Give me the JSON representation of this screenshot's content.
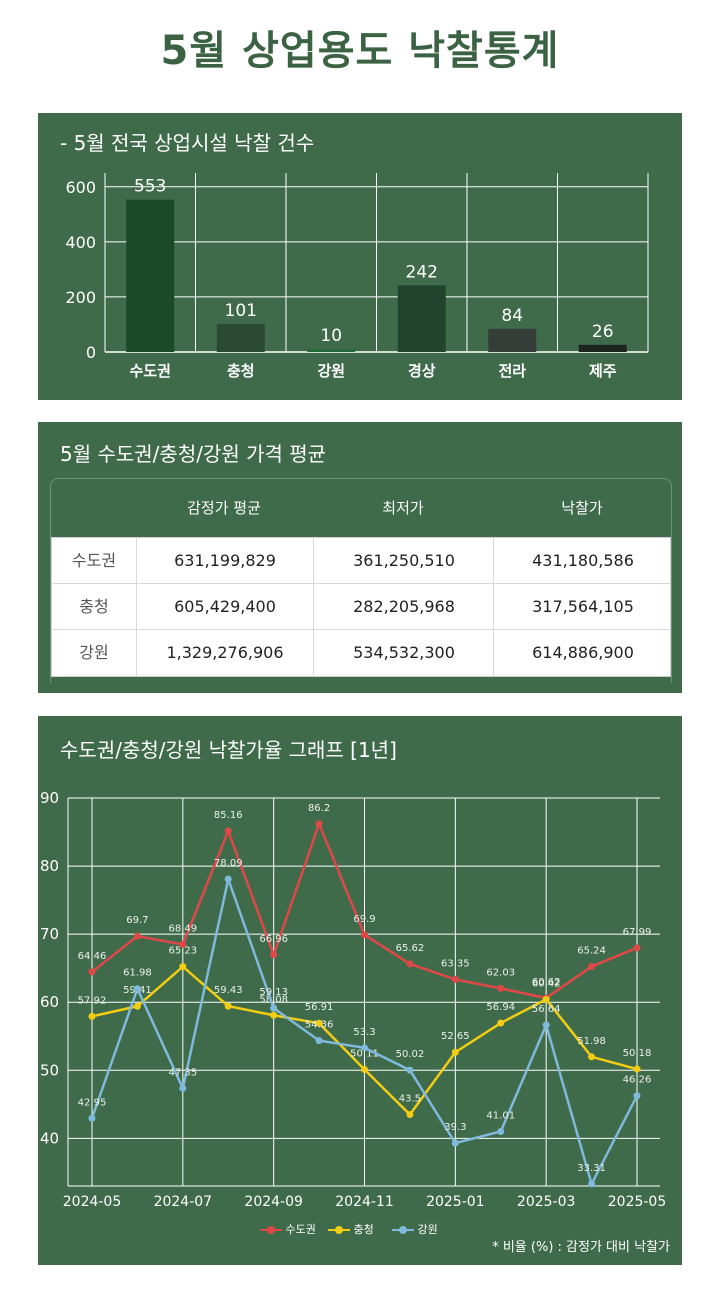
{
  "page_title": "5월 상업용도 낙찰통계",
  "colors": {
    "panel_bg": "#3f6b4b",
    "title_color": "#3b6343",
    "sudogwon": "#e04848",
    "chungcheong": "#f2cd14",
    "gangwon": "#7fb9dc"
  },
  "panel1": {
    "title": "- 5월 전국 상업시설 낙찰 건수",
    "chart_data": {
      "type": "bar",
      "title": "- 5월 전국 상업시설 낙찰 건수",
      "categories": [
        "수도권",
        "충청",
        "강원",
        "경상",
        "전라",
        "제주"
      ],
      "values": [
        553,
        101,
        10,
        242,
        84,
        26
      ],
      "bar_colors": [
        "#1c4a27",
        "#2a4a33",
        "#24693a",
        "#22432e",
        "#343d37",
        "#1c2420"
      ],
      "yticks": [
        0,
        200,
        400,
        600
      ],
      "ylim": [
        0,
        650
      ],
      "grid": true
    }
  },
  "panel2": {
    "title": "5월 수도권/충청/강원 가격 평균",
    "columns": [
      "감정가 평균",
      "최저가",
      "낙찰가"
    ],
    "rows": [
      {
        "region": "수도권",
        "appraisal": "631,199,829",
        "minimum": "361,250,510",
        "winning": "431,180,586"
      },
      {
        "region": "충청",
        "appraisal": "605,429,400",
        "minimum": "282,205,968",
        "winning": "317,564,105"
      },
      {
        "region": "강원",
        "appraisal": "1,329,276,906",
        "minimum": "534,532,300",
        "winning": "614,886,900"
      }
    ]
  },
  "panel3": {
    "title": "수도권/충청/강원 낙찰가율 그래프 [1년]",
    "note": "* 비율 (%) : 감정가 대비 낙찰가",
    "chart_data": {
      "type": "line",
      "title": "수도권/충청/강원 낙찰가율 그래프 [1년]",
      "x": [
        "2024-05",
        "2024-06",
        "2024-07",
        "2024-08",
        "2024-09",
        "2024-10",
        "2024-11",
        "2024-12",
        "2025-01",
        "2025-02",
        "2025-03",
        "2025-04",
        "2025-05"
      ],
      "xtick_labels": [
        "2024-05",
        "2024-07",
        "2024-09",
        "2024-11",
        "2025-01",
        "2025-03",
        "2025-05"
      ],
      "yticks": [
        40,
        50,
        60,
        70,
        80,
        90
      ],
      "ylim": [
        33,
        90
      ],
      "grid": true,
      "legend_position": "bottom",
      "series": [
        {
          "name": "수도권",
          "color": "#e04848",
          "values": [
            64.46,
            69.7,
            68.49,
            85.16,
            66.96,
            86.2,
            69.9,
            65.62,
            63.35,
            62.03,
            60.62,
            65.24,
            67.99
          ]
        },
        {
          "name": "충청",
          "color": "#f2cd14",
          "values": [
            57.92,
            59.41,
            65.23,
            59.43,
            58.08,
            56.91,
            50.11,
            43.5,
            52.65,
            56.94,
            60.42,
            51.98,
            50.18
          ]
        },
        {
          "name": "강원",
          "color": "#7fb9dc",
          "values": [
            42.95,
            61.98,
            47.35,
            78.09,
            59.13,
            54.36,
            53.3,
            50.02,
            39.3,
            41.01,
            56.64,
            33.31,
            46.26
          ]
        }
      ]
    }
  }
}
